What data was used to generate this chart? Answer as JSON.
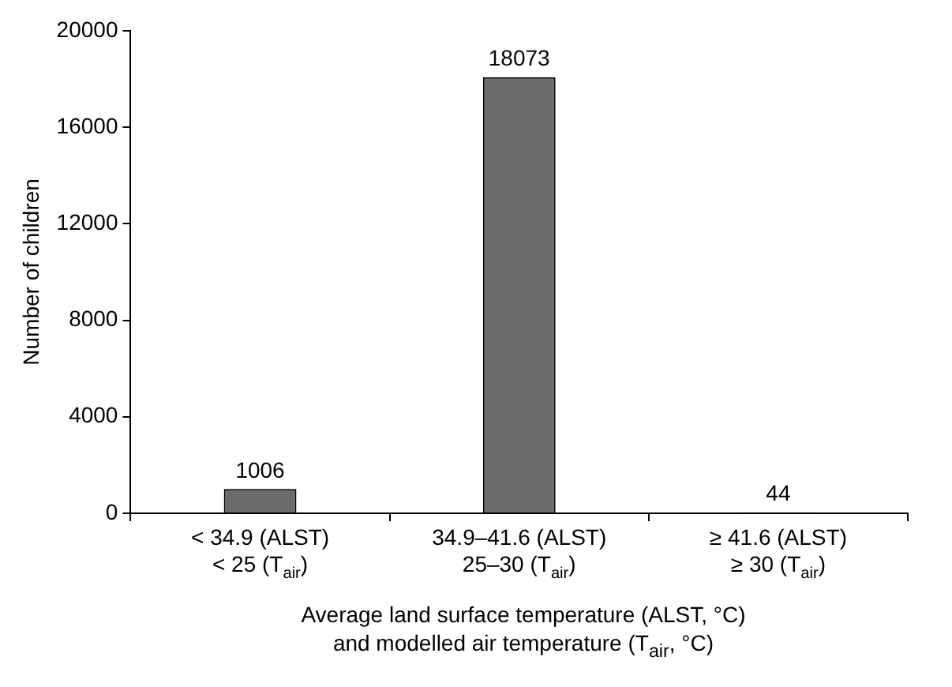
{
  "chart_data": {
    "type": "bar",
    "xlabel": "Average land surface temperature (ALST, °C)\nand modelled air temperature (T$_{air}$, °C)",
    "ylabel": "Number of children",
    "categories": [
      "< 34.9 (ALST)\n< 25 (T$_{air}$)",
      "34.9–41.6 (ALST)\n25–30 (T$_{air}$)",
      "≥ 41.6 (ALST)\n≥ 30 (T$_{air}$)"
    ],
    "values": [
      1006,
      18073,
      44
    ],
    "color": "#6b6b6b",
    "ylim": [
      0,
      20000
    ],
    "yticks": [
      0,
      4000,
      8000,
      12000,
      16000,
      20000
    ],
    "grid": false,
    "data_labels": true,
    "legend": false
  }
}
